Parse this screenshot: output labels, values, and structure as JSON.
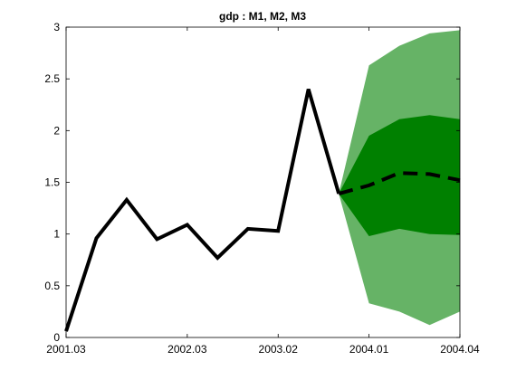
{
  "chart_data": {
    "type": "line",
    "title": "gdp : M1, M2, M3",
    "xlabel": "",
    "ylabel": "",
    "x_tick_labels": [
      "2001.03",
      "2002.03",
      "2003.02",
      "2004.01",
      "2004.04"
    ],
    "x_tick_index": [
      0,
      4,
      7,
      10,
      13
    ],
    "ylim": [
      0,
      3
    ],
    "y_ticks": [
      0,
      0.5,
      1,
      1.5,
      2,
      2.5,
      3
    ],
    "y_tick_labels": [
      "0",
      "0.5",
      "1",
      "1.5",
      "2",
      "2.5",
      "3"
    ],
    "grid": false,
    "legend": "none",
    "history": {
      "index": [
        0,
        1,
        2,
        3,
        4,
        5,
        6,
        7,
        8,
        9
      ],
      "values": [
        0.06,
        0.96,
        1.33,
        0.95,
        1.09,
        0.77,
        1.05,
        1.03,
        2.4,
        1.39
      ],
      "color": "#000000",
      "style": "solid"
    },
    "forecast": {
      "index": [
        9,
        10,
        11,
        12,
        13
      ],
      "values": [
        1.39,
        1.47,
        1.59,
        1.58,
        1.52
      ],
      "color": "#000000",
      "style": "dashed"
    },
    "bands": [
      {
        "index": [
          9,
          10,
          11,
          12,
          13
        ],
        "lower": [
          1.39,
          0.33,
          0.25,
          0.12,
          0.25
        ],
        "upper": [
          1.39,
          2.63,
          2.82,
          2.94,
          2.97
        ],
        "color": "#66b366"
      },
      {
        "index": [
          9,
          10,
          11,
          12,
          13
        ],
        "lower": [
          1.39,
          0.98,
          1.05,
          1.0,
          0.99
        ],
        "upper": [
          1.39,
          1.95,
          2.11,
          2.15,
          2.11
        ],
        "color": "#008000"
      }
    ]
  }
}
